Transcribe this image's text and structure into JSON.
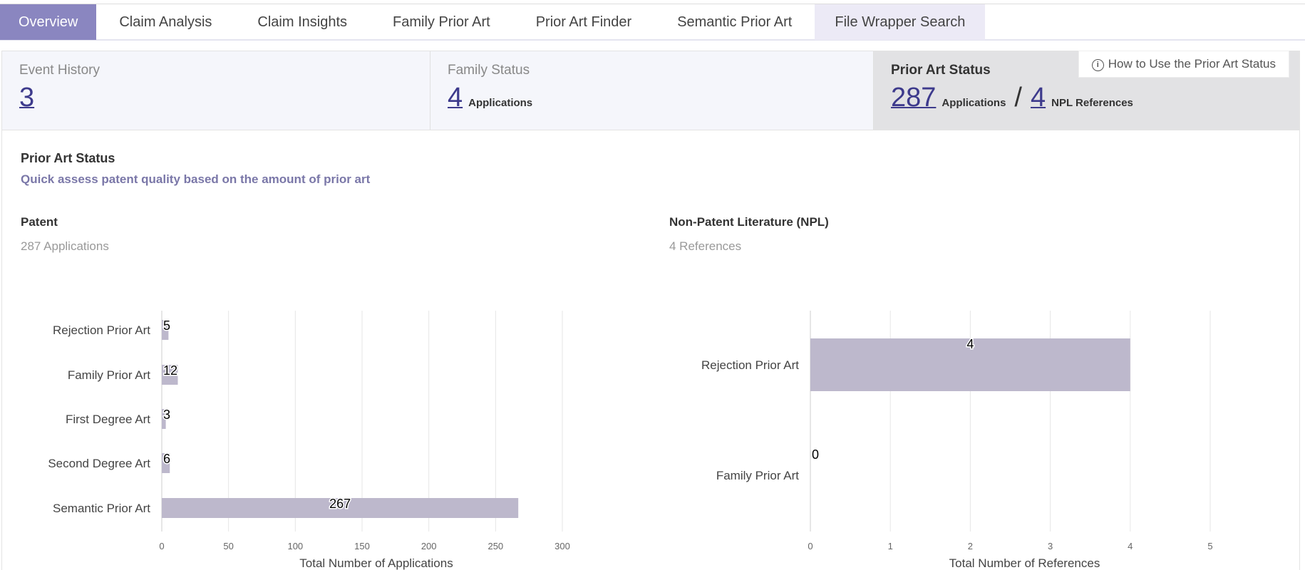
{
  "tabs": [
    {
      "label": "Overview",
      "active": true
    },
    {
      "label": "Claim Analysis"
    },
    {
      "label": "Claim Insights"
    },
    {
      "label": "Family Prior Art"
    },
    {
      "label": "Prior Art Finder"
    },
    {
      "label": "Semantic Prior Art"
    },
    {
      "label": "File Wrapper Search",
      "highlight": true
    }
  ],
  "stats": {
    "event_history": {
      "label": "Event History",
      "value": "3"
    },
    "family_status": {
      "label": "Family Status",
      "value": "4",
      "unit": "Applications"
    },
    "prior_art_status": {
      "label": "Prior Art Status",
      "apps_value": "287",
      "apps_unit": "Applications",
      "slash": "/",
      "npl_value": "4",
      "npl_unit": "NPL References"
    },
    "help_label": "How to Use the Prior Art Status",
    "help_icon": "info-circle-icon"
  },
  "panel": {
    "title": "Prior Art Status",
    "subtitle": "Quick assess patent quality based on the amount of prior art",
    "patent": {
      "title": "Patent",
      "subtitle": "287 Applications"
    },
    "npl": {
      "title": "Non-Patent Literature (NPL)",
      "subtitle": "4 References"
    }
  },
  "colors": {
    "bar": "#bdb8cc",
    "accent": "#8a86c0",
    "link": "#3d3a8c"
  },
  "chart_data": [
    {
      "type": "bar",
      "orientation": "horizontal",
      "categories": [
        "Rejection Prior Art",
        "Family Prior Art",
        "First Degree Art",
        "Second Degree Art",
        "Semantic Prior Art"
      ],
      "values": [
        5,
        12,
        3,
        6,
        267
      ],
      "xlabel": "Total Number of Applications",
      "xlim": [
        0,
        300
      ],
      "xticks": [
        0,
        50,
        100,
        150,
        200,
        250,
        300
      ],
      "grid": true
    },
    {
      "type": "bar",
      "orientation": "horizontal",
      "categories": [
        "Rejection Prior Art",
        "Family Prior Art"
      ],
      "values": [
        4,
        0
      ],
      "xlabel": "Total Number of References",
      "xlim": [
        0,
        5
      ],
      "xticks": [
        0,
        1,
        2,
        3,
        4,
        5
      ],
      "grid": true
    }
  ]
}
